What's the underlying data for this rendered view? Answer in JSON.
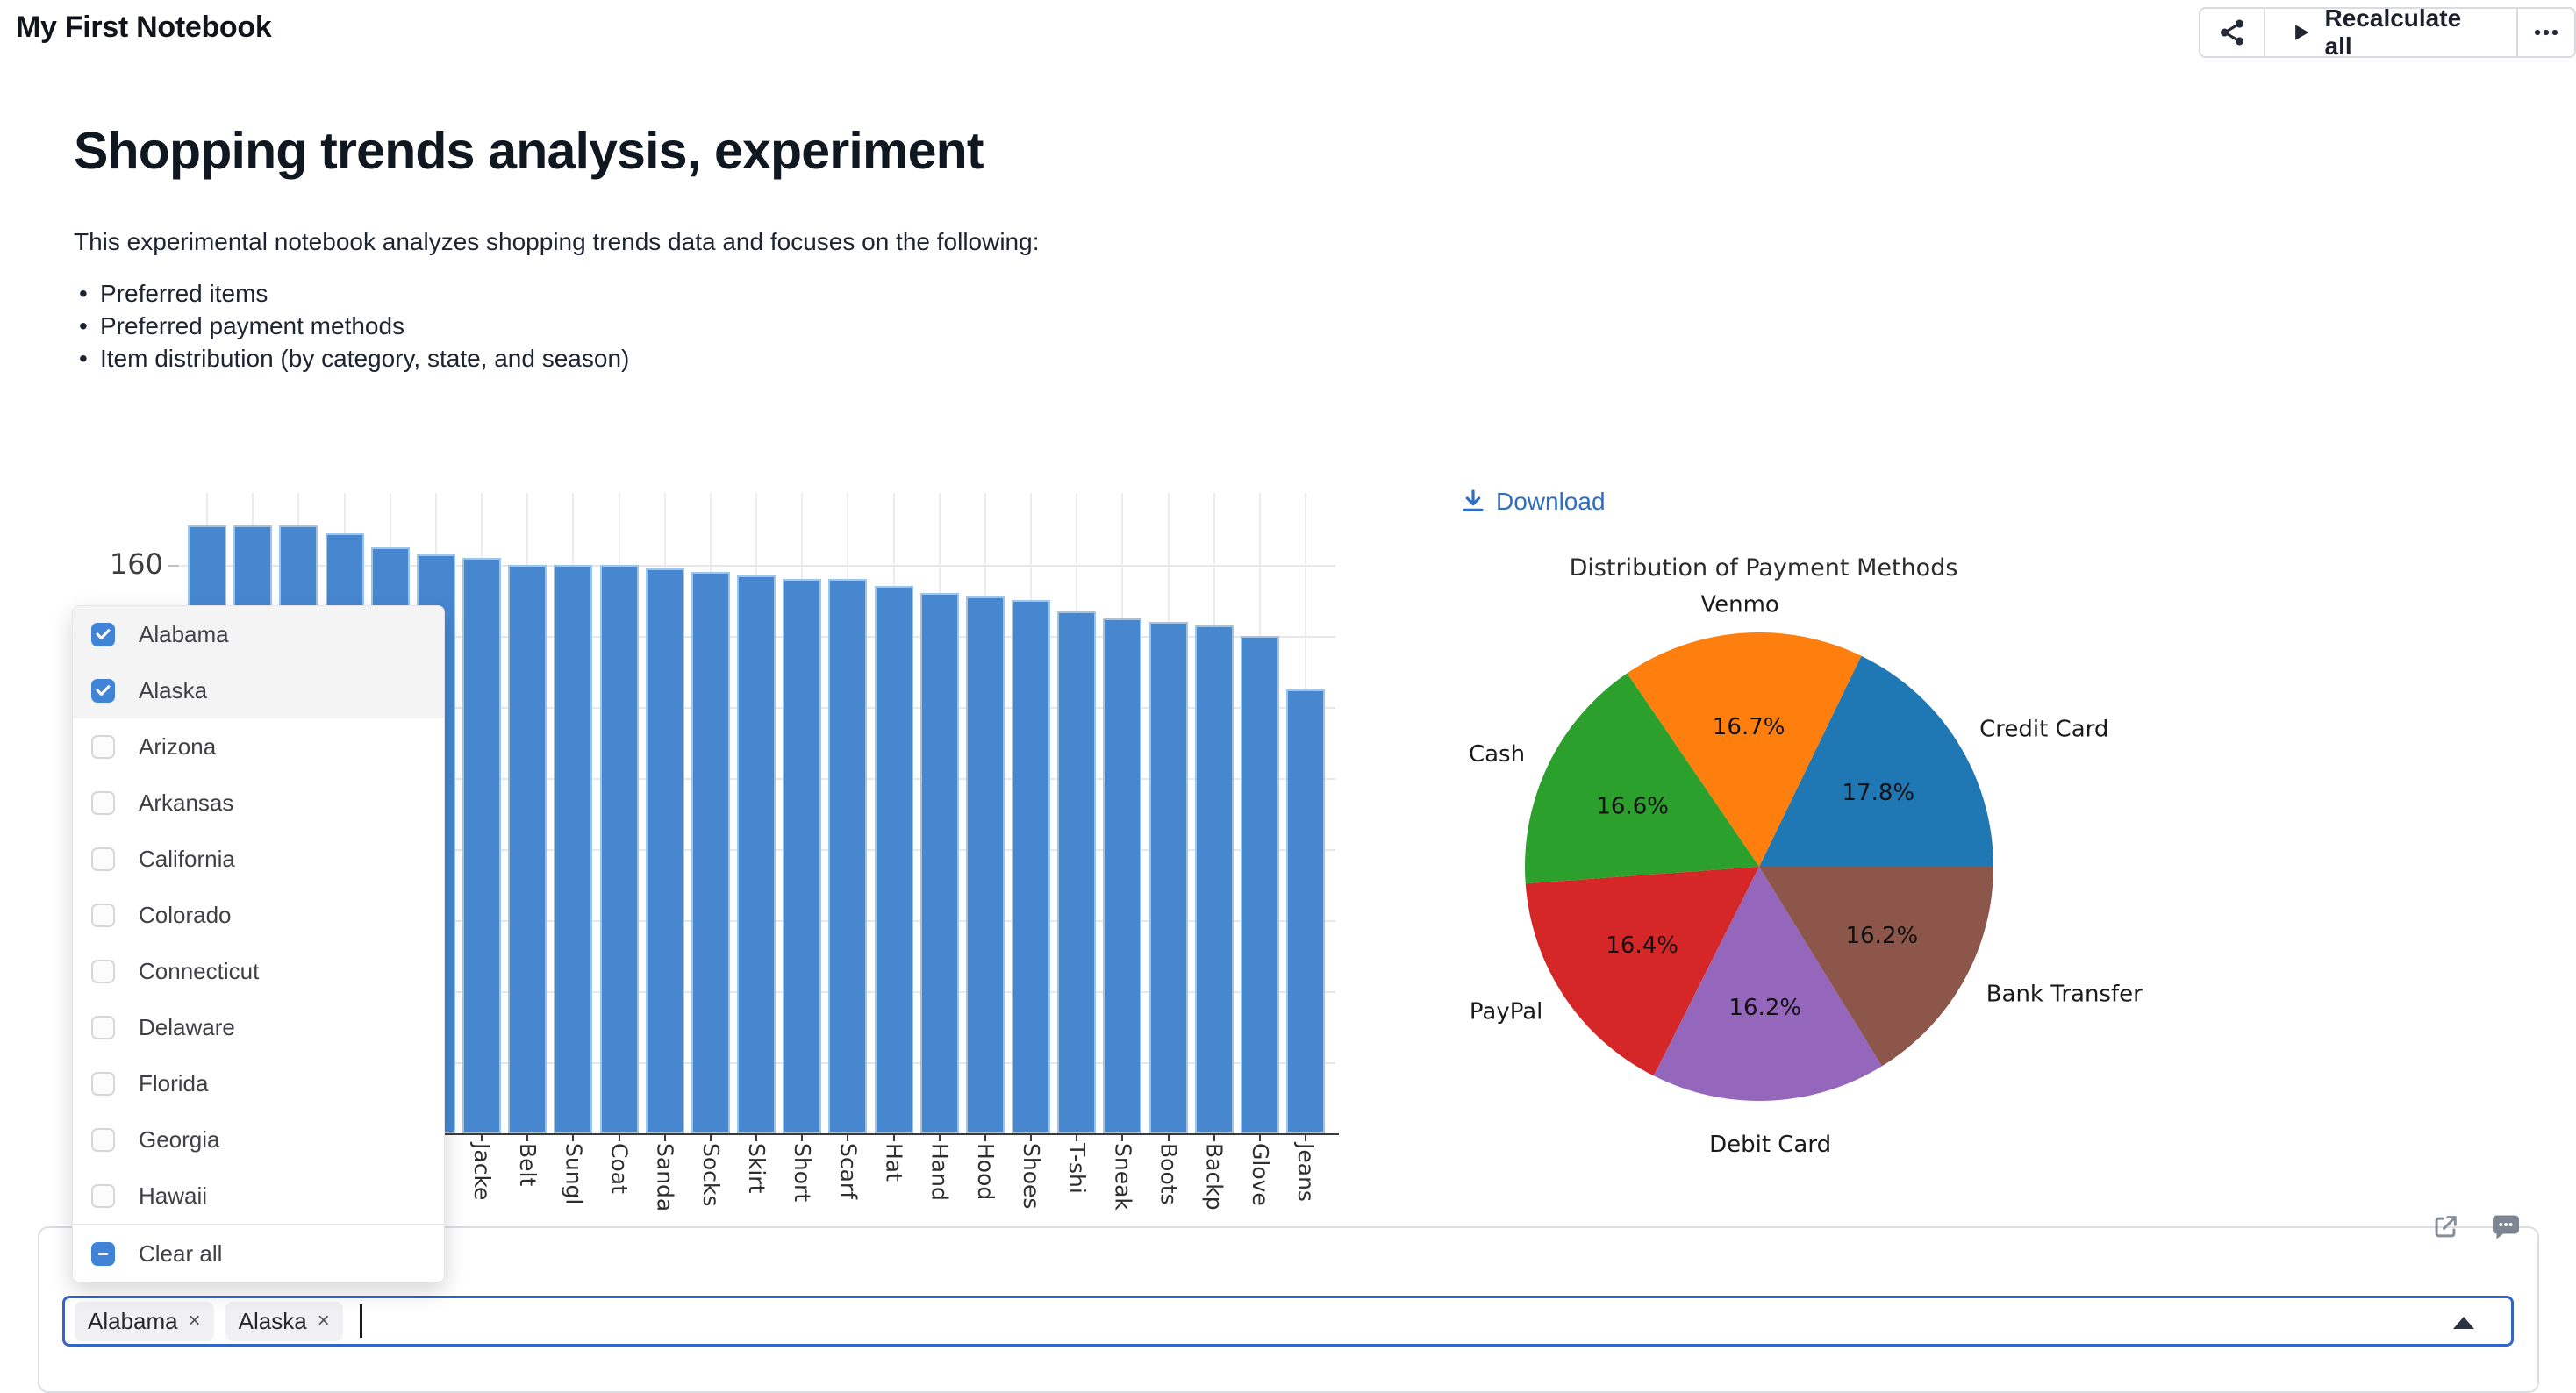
{
  "topbar": {
    "title": "My First Notebook",
    "recalculate_label": "Recalculate all"
  },
  "article": {
    "heading": "Shopping trends analysis, experiment",
    "intro": "This experimental notebook analyzes shopping trends data and focuses on the following:",
    "bullets": [
      "Preferred items",
      "Preferred payment methods",
      "Item distribution (by category, state, and season)"
    ]
  },
  "ui": {
    "download_label": "Download",
    "clear_all_label": "Clear all",
    "remove_symbol": "×"
  },
  "state_dropdown": {
    "options": [
      {
        "label": "Alabama",
        "checked": true
      },
      {
        "label": "Alaska",
        "checked": true
      },
      {
        "label": "Arizona",
        "checked": false
      },
      {
        "label": "Arkansas",
        "checked": false
      },
      {
        "label": "California",
        "checked": false
      },
      {
        "label": "Colorado",
        "checked": false
      },
      {
        "label": "Connecticut",
        "checked": false
      },
      {
        "label": "Delaware",
        "checked": false
      },
      {
        "label": "Florida",
        "checked": false
      },
      {
        "label": "Georgia",
        "checked": false
      },
      {
        "label": "Hawaii",
        "checked": false
      }
    ]
  },
  "state_select": {
    "selected": [
      "Alabama",
      "Alaska"
    ]
  },
  "colors": {
    "accent_blue": "#4183d7",
    "select_border": "#3366c5",
    "link_blue": "#2e6fc2",
    "bar_fill": "#4687d0",
    "bar_edge": "#9ec4e8",
    "icon_gray": "#878f98"
  },
  "chart_data": [
    {
      "type": "bar",
      "title": "",
      "xlabel": "",
      "ylabel": "",
      "categories": [
        "",
        "",
        "",
        "",
        "",
        "",
        "Jacke",
        "Belt",
        "Sungl",
        "Coat",
        "Sanda",
        "Socks",
        "Skirt",
        "Short",
        "Scarf",
        "Hat",
        "Hand",
        "Hood",
        "Shoes",
        "T-shi",
        "Sneak",
        "Boots",
        "Backp",
        "Glove",
        "Jeans"
      ],
      "values": [
        171,
        171,
        171,
        169,
        165,
        163,
        162,
        160,
        160,
        160,
        159,
        158,
        157,
        156,
        156,
        154,
        152,
        151,
        150,
        147,
        145,
        144,
        143,
        140,
        125
      ],
      "ylim": [
        0,
        182
      ],
      "yticks_visible": [
        160
      ],
      "grid": "both",
      "legend": "none",
      "bar_color": "#4687d0"
    },
    {
      "type": "pie",
      "title": "Distribution of Payment Methods",
      "labels": [
        "Credit Card",
        "Venmo",
        "Cash",
        "PayPal",
        "Debit Card",
        "Bank Transfer"
      ],
      "values": [
        17.8,
        16.7,
        16.6,
        16.4,
        16.2,
        16.2
      ],
      "pct_labels": [
        "17.8%",
        "16.7%",
        "16.6%",
        "16.4%",
        "16.2%",
        "16.2%"
      ],
      "colors": [
        "#1f77b4",
        "#ff7f0e",
        "#2ca02c",
        "#d62728",
        "#9467bd",
        "#8c564b"
      ],
      "start_angle": 0,
      "direction": "ccw",
      "legend": "none"
    }
  ]
}
